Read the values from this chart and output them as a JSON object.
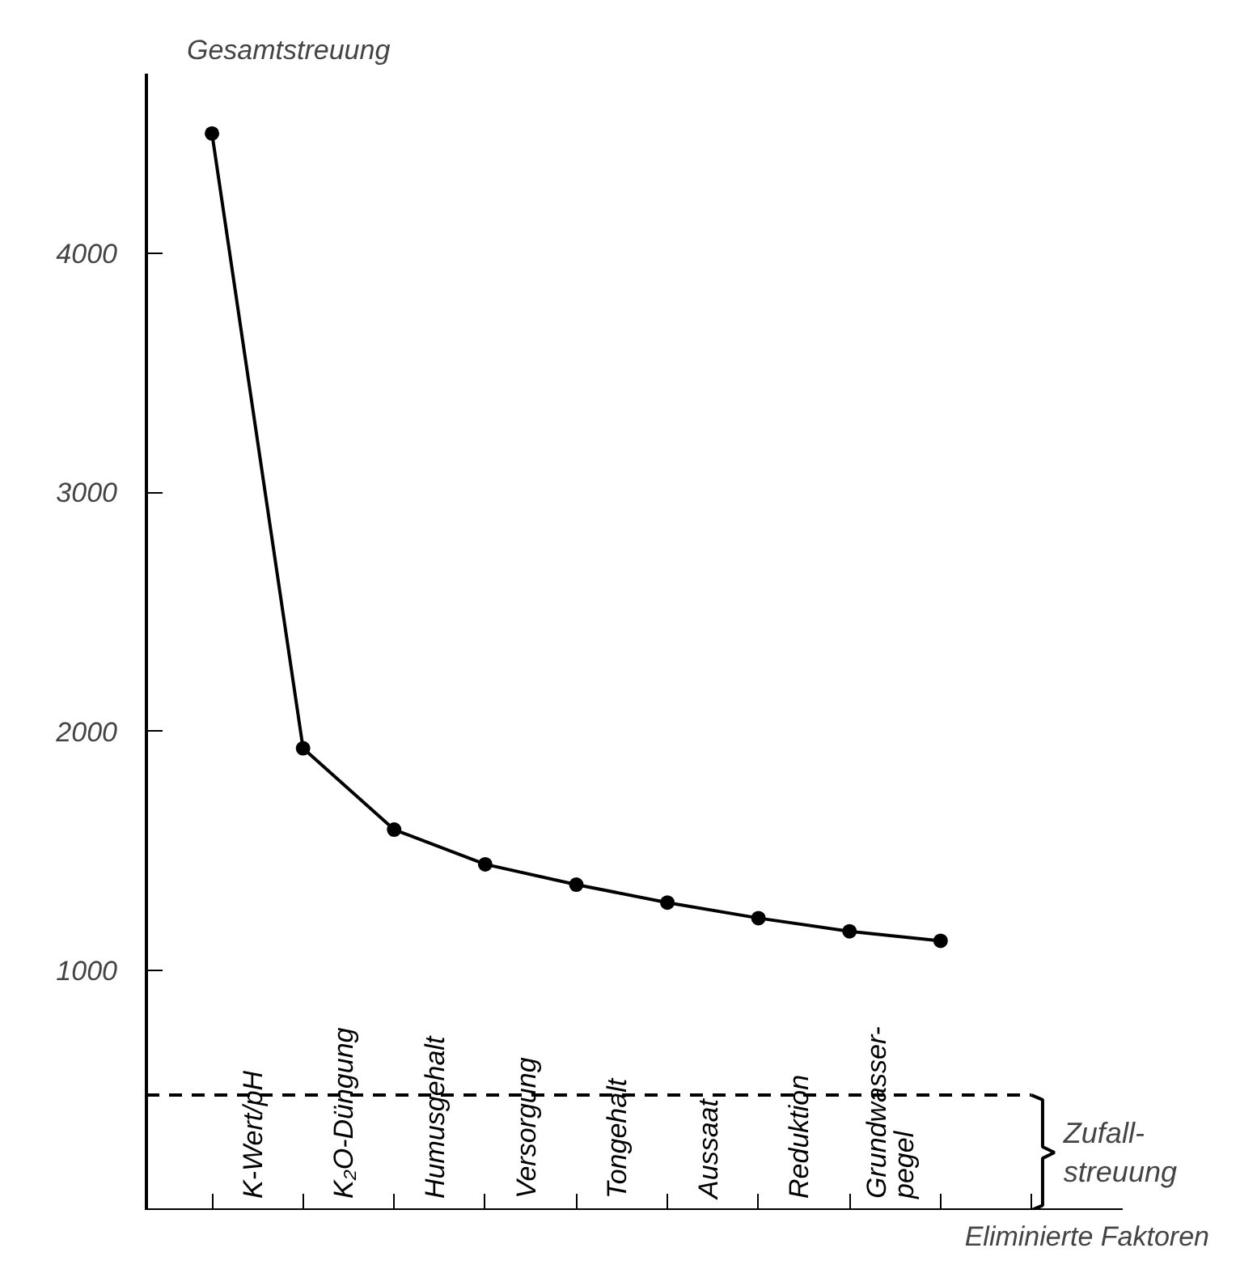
{
  "chart_data": {
    "type": "line",
    "ylabel": "Gesamtstreuung",
    "xlabel": "Eliminierte Faktoren",
    "categories": [
      null,
      null,
      null,
      null,
      null,
      null,
      null,
      null,
      null
    ],
    "annotations": [
      "K-Wert/pH",
      "K₂O-Düngung",
      "Humusgehalt",
      "Versorgung",
      "Tongehalt",
      "Aussaat",
      "Reduktion",
      "Grundwasser-\npegel"
    ],
    "series": [
      {
        "color": "#000000",
        "values": [
          4500,
          1930,
          1590,
          1445,
          1360,
          1285,
          1220,
          1165,
          1125
        ]
      }
    ],
    "ylim": [
      0,
      4750
    ],
    "yticks": [
      1000,
      2000,
      3000,
      4000
    ],
    "ref_lines": [
      {
        "axis": "y",
        "value": 480,
        "label": "Zufall-\nstreuung",
        "line_style": "dashed",
        "color": "#000000"
      }
    ],
    "marker": "circle",
    "grid": false
  }
}
